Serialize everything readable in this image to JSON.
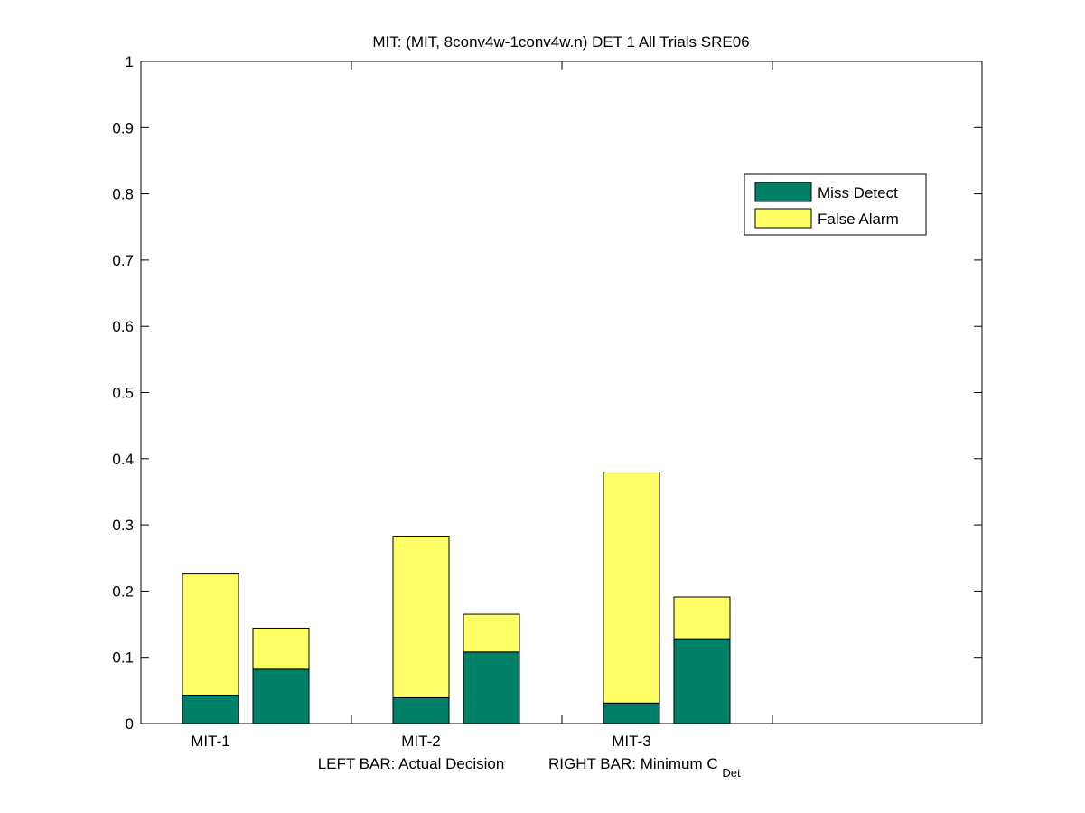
{
  "chart_data": {
    "type": "bar",
    "stacked": true,
    "title": "MIT: (MIT, 8conv4w-1conv4w.n) DET 1 All Trials SRE06",
    "xlabel_left": "LEFT BAR: Actual Decision",
    "xlabel_right_main": "RIGHT BAR: Minimum C",
    "xlabel_right_sub": "Det",
    "ylim": [
      0,
      1
    ],
    "yticks": [
      0,
      0.1,
      0.2,
      0.3,
      0.4,
      0.5,
      0.6,
      0.7,
      0.8,
      0.9,
      1
    ],
    "ytick_labels": [
      "0",
      "0.1",
      "0.2",
      "0.3",
      "0.4",
      "0.5",
      "0.6",
      "0.7",
      "0.8",
      "0.9",
      "1"
    ],
    "categories": [
      "MIT-1",
      "MIT-2",
      "MIT-3"
    ],
    "series": [
      {
        "name": "Miss Detect",
        "color": "#008066",
        "left": [
          0.043,
          0.039,
          0.031
        ],
        "right": [
          0.082,
          0.108,
          0.128
        ]
      },
      {
        "name": "False Alarm",
        "color": "#ffff66",
        "left": [
          0.184,
          0.244,
          0.349
        ],
        "right": [
          0.062,
          0.057,
          0.063
        ]
      }
    ],
    "grid": false,
    "legend_position": "top-right"
  }
}
